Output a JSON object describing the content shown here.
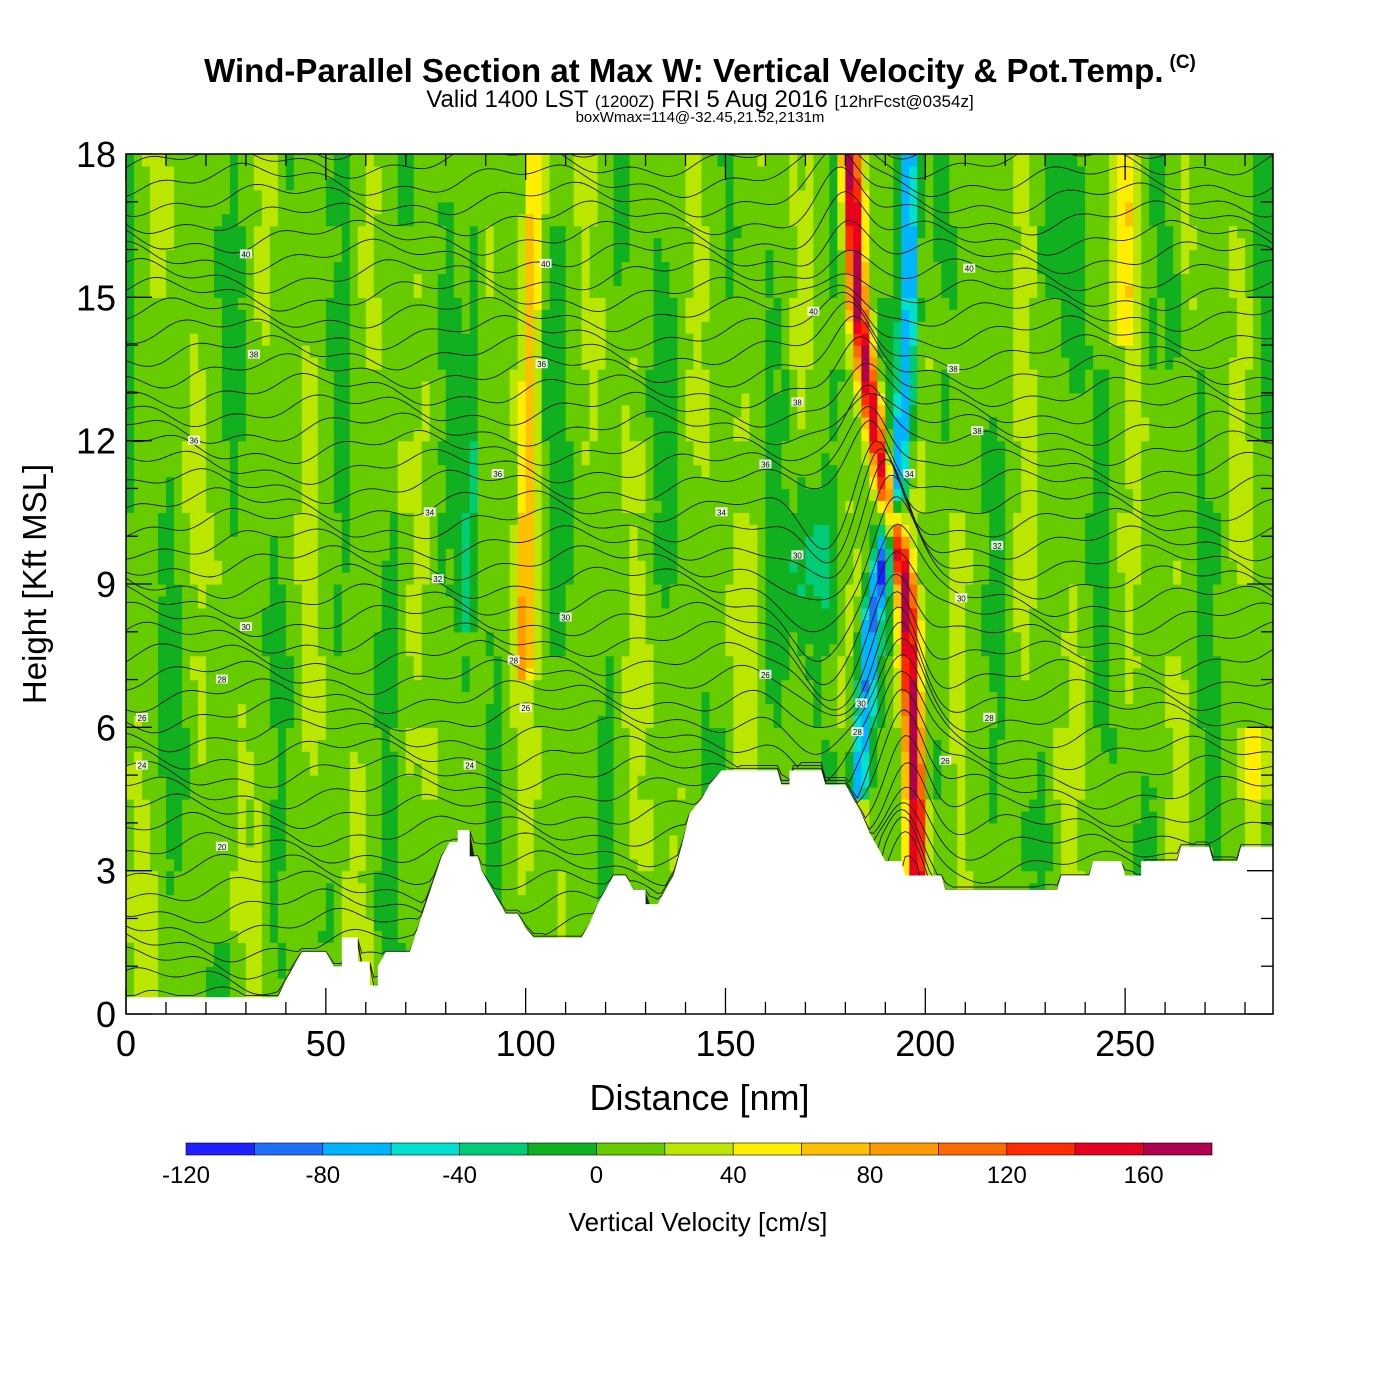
{
  "title": {
    "main": "Wind-Parallel Section at Max W: Vertical Velocity & Pot.Temp.",
    "copyright": "(C)",
    "valid_prefix": "Valid 1400 LST",
    "valid_utc": "(1200Z)",
    "valid_date": "FRI 5 Aug 2016",
    "forecast": "[12hrFcst@0354z]",
    "box_wmax": "boxWmax=114@-32.45,21.52,2131m"
  },
  "chart_data": {
    "type": "heatmap",
    "xlabel": "Distance [nm]",
    "ylabel": "Height [Kft MSL]",
    "xlim": [
      0,
      287
    ],
    "ylim": [
      0,
      18
    ],
    "x_ticks": [
      0,
      50,
      100,
      150,
      200,
      250
    ],
    "y_ticks": [
      0,
      3,
      6,
      9,
      12,
      15,
      18
    ],
    "colorbar": {
      "label": "Vertical Velocity [cm/s]",
      "levels": [
        -120,
        -100,
        -80,
        -60,
        -40,
        -20,
        0,
        20,
        40,
        60,
        80,
        100,
        120,
        140,
        160,
        180
      ],
      "tick_labels": [
        "-120",
        "-80",
        "-40",
        "0",
        "40",
        "80",
        "120",
        "160"
      ],
      "tick_values": [
        -120,
        -80,
        -40,
        0,
        40,
        80,
        120,
        160
      ],
      "colors": [
        "#1f1fff",
        "#1f6fff",
        "#00b4ff",
        "#00e0d0",
        "#00cc77",
        "#10b020",
        "#66cc00",
        "#bbe600",
        "#ffee00",
        "#ffc000",
        "#ff9a00",
        "#ff6a00",
        "#ff2a00",
        "#e80020",
        "#b00050"
      ],
      "min": -120,
      "max": 180
    },
    "background_w": 10,
    "terrain_kft": [
      [
        0,
        0.35
      ],
      [
        38,
        0.35
      ],
      [
        40,
        0.7
      ],
      [
        42,
        1.0
      ],
      [
        44,
        1.3
      ],
      [
        50,
        1.3
      ],
      [
        52,
        1.0
      ],
      [
        54,
        1.0
      ],
      [
        54,
        1.6
      ],
      [
        58,
        1.6
      ],
      [
        58,
        1.1
      ],
      [
        61,
        1.1
      ],
      [
        61,
        0.6
      ],
      [
        63,
        0.6
      ],
      [
        63,
        1.0
      ],
      [
        65,
        1.3
      ],
      [
        71,
        1.3
      ],
      [
        73,
        1.8
      ],
      [
        75,
        2.3
      ],
      [
        77,
        2.8
      ],
      [
        79,
        3.3
      ],
      [
        81,
        3.6
      ],
      [
        83,
        3.6
      ],
      [
        83,
        3.85
      ],
      [
        86,
        3.85
      ],
      [
        86,
        3.3
      ],
      [
        88,
        3.3
      ],
      [
        89,
        3.0
      ],
      [
        91,
        2.7
      ],
      [
        93,
        2.4
      ],
      [
        95,
        2.1
      ],
      [
        98,
        2.1
      ],
      [
        100,
        1.8
      ],
      [
        102,
        1.6
      ],
      [
        114,
        1.6
      ],
      [
        116,
        1.9
      ],
      [
        118,
        2.3
      ],
      [
        120,
        2.6
      ],
      [
        122,
        2.9
      ],
      [
        125,
        2.9
      ],
      [
        127,
        2.6
      ],
      [
        130,
        2.6
      ],
      [
        130,
        2.3
      ],
      [
        133,
        2.3
      ],
      [
        135,
        2.6
      ],
      [
        137,
        2.9
      ],
      [
        139,
        3.5
      ],
      [
        141,
        4.2
      ],
      [
        144,
        4.5
      ],
      [
        146,
        4.8
      ],
      [
        149,
        5.1
      ],
      [
        163,
        5.1
      ],
      [
        164,
        4.8
      ],
      [
        166,
        4.8
      ],
      [
        166,
        5.1
      ],
      [
        174,
        5.1
      ],
      [
        175,
        4.8
      ],
      [
        180,
        4.8
      ],
      [
        182,
        4.5
      ],
      [
        184,
        4.2
      ],
      [
        186,
        3.8
      ],
      [
        188,
        3.5
      ],
      [
        190,
        3.2
      ],
      [
        194,
        3.2
      ],
      [
        195,
        2.9
      ],
      [
        204,
        2.9
      ],
      [
        205,
        2.6
      ],
      [
        233,
        2.6
      ],
      [
        234,
        2.9
      ],
      [
        241,
        2.9
      ],
      [
        242,
        3.2
      ],
      [
        249,
        3.2
      ],
      [
        250,
        2.9
      ],
      [
        254,
        2.9
      ],
      [
        254,
        3.2
      ],
      [
        263,
        3.2
      ],
      [
        264,
        3.5
      ],
      [
        271,
        3.5
      ],
      [
        272,
        3.2
      ],
      [
        278,
        3.2
      ],
      [
        279,
        3.5
      ],
      [
        287,
        3.5
      ]
    ],
    "updraft_bands": [
      {
        "x": [
          [
            84,
            0
          ],
          [
            86,
            20
          ],
          [
            92,
            95
          ],
          [
            99,
            100
          ],
          [
            104,
            100
          ]
        ],
        "width": 3,
        "peak": 50
      },
      {
        "x": [
          [
            0,
            5
          ],
          [
            5,
            7
          ],
          [
            10,
            7
          ],
          [
            18,
            70
          ],
          [
            20,
            100
          ],
          [
            40,
            100
          ]
        ],
        "width": 0.5,
        "peak": 1
      },
      {
        "x": [
          [
            0,
            5
          ],
          [
            10,
            5
          ],
          [
            11,
            70
          ],
          [
            12,
            100
          ]
        ],
        "width": 0,
        "peak": 0
      },
      {
        "x": [
          [
            80,
            0
          ],
          [
            180,
            18
          ],
          [
            181,
            18
          ]
        ],
        "width": 0,
        "peak": 0
      }
    ],
    "main_updraft": {
      "path": [
        [
          198,
          4.0
        ],
        [
          197,
          6.0
        ],
        [
          195,
          9.0
        ],
        [
          190,
          11.0
        ],
        [
          186,
          13.0
        ],
        [
          183,
          15.0
        ],
        [
          181,
          18.0
        ]
      ],
      "peak": 165
    },
    "main_downdraft": {
      "path": [
        [
          183,
          4.5
        ],
        [
          186,
          8.0
        ],
        [
          193,
          11.0
        ],
        [
          195,
          13.0
        ],
        [
          196,
          15.0
        ],
        [
          196,
          18.0
        ]
      ],
      "peak": -100
    },
    "contour_labels": [
      {
        "text": "40",
        "x": 30,
        "y": 15.9
      },
      {
        "text": "38",
        "x": 32,
        "y": 13.8
      },
      {
        "text": "36",
        "x": 17,
        "y": 12.0
      },
      {
        "text": "30",
        "x": 30,
        "y": 8.1
      },
      {
        "text": "28",
        "x": 24,
        "y": 7.0
      },
      {
        "text": "26",
        "x": 4,
        "y": 6.2
      },
      {
        "text": "24",
        "x": 4,
        "y": 5.2
      },
      {
        "text": "20",
        "x": 24,
        "y": 3.5
      },
      {
        "text": "40",
        "x": 105,
        "y": 15.7
      },
      {
        "text": "36",
        "x": 104,
        "y": 13.6
      },
      {
        "text": "36",
        "x": 93,
        "y": 11.3
      },
      {
        "text": "34",
        "x": 76,
        "y": 10.5
      },
      {
        "text": "32",
        "x": 78,
        "y": 9.1
      },
      {
        "text": "30",
        "x": 110,
        "y": 8.3
      },
      {
        "text": "28",
        "x": 97,
        "y": 7.4
      },
      {
        "text": "26",
        "x": 100,
        "y": 6.4
      },
      {
        "text": "24",
        "x": 86,
        "y": 5.2
      },
      {
        "text": "40",
        "x": 172,
        "y": 14.7
      },
      {
        "text": "38",
        "x": 168,
        "y": 12.8
      },
      {
        "text": "36",
        "x": 160,
        "y": 11.5
      },
      {
        "text": "34",
        "x": 149,
        "y": 10.5
      },
      {
        "text": "30",
        "x": 168,
        "y": 9.6
      },
      {
        "text": "26",
        "x": 160,
        "y": 7.1
      },
      {
        "text": "30",
        "x": 184,
        "y": 6.5
      },
      {
        "text": "28",
        "x": 183,
        "y": 5.9
      },
      {
        "text": "40",
        "x": 211,
        "y": 15.6
      },
      {
        "text": "38",
        "x": 207,
        "y": 13.5
      },
      {
        "text": "38",
        "x": 213,
        "y": 12.2
      },
      {
        "text": "34",
        "x": 196,
        "y": 11.3
      },
      {
        "text": "32",
        "x": 218,
        "y": 9.8
      },
      {
        "text": "30",
        "x": 209,
        "y": 8.7
      },
      {
        "text": "28",
        "x": 216,
        "y": 6.2
      },
      {
        "text": "26",
        "x": 205,
        "y": 5.3
      }
    ]
  }
}
